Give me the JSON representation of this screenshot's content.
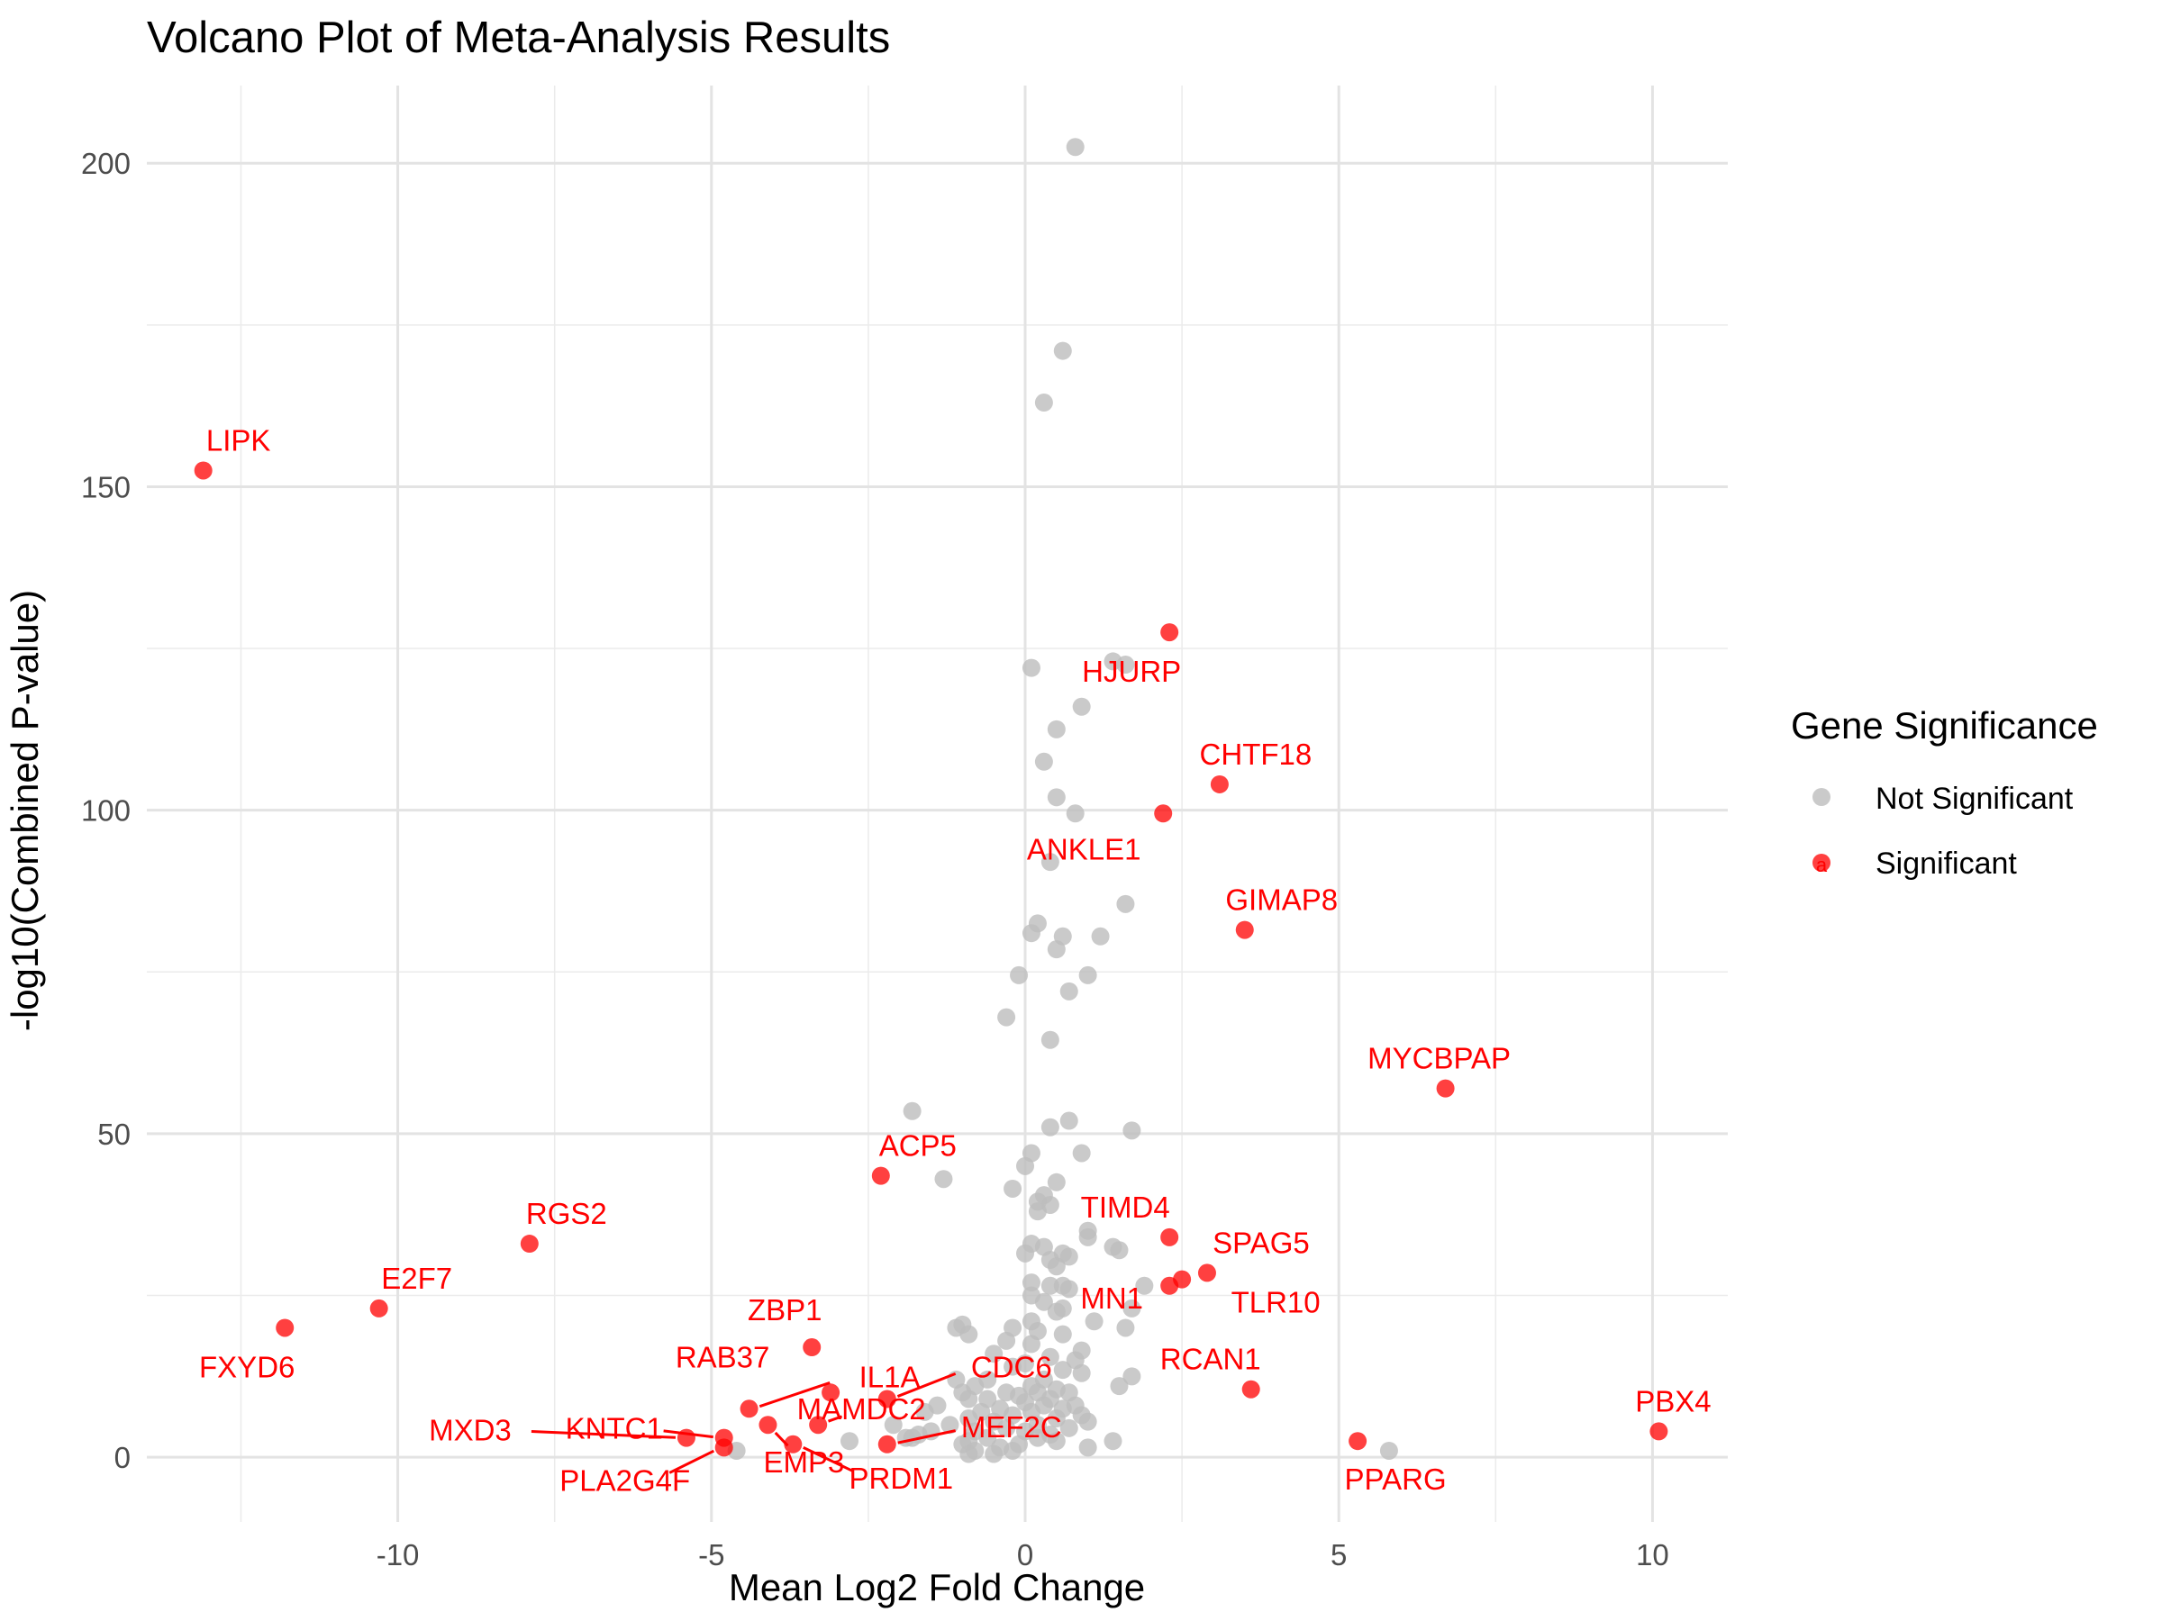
{
  "chart_data": {
    "type": "scatter",
    "title": "Volcano Plot of Meta-Analysis Results",
    "xlabel": "Mean Log2 Fold Change",
    "ylabel": "-log10(Combined P-value)",
    "xlim": [
      -14,
      11.2
    ],
    "ylim": [
      -10,
      212
    ],
    "x_ticks": [
      -10,
      -5,
      0,
      5,
      10
    ],
    "x_tick_labels": [
      "-10",
      "-5",
      "0",
      "5",
      "10"
    ],
    "y_ticks": [
      0,
      50,
      100,
      150,
      200
    ],
    "y_tick_labels": [
      "0",
      "50",
      "100",
      "150",
      "200"
    ],
    "grid": true,
    "legend": {
      "title": "Gene Significance",
      "position": "right",
      "entries": [
        {
          "label": "Not Significant",
          "color": "#bdbdbd"
        },
        {
          "label": "Significant",
          "color": "#ff0000"
        }
      ]
    },
    "colors": {
      "significant": "#ff0000",
      "not_significant": "#bdbdbd"
    },
    "significant": [
      {
        "gene": "LIPK",
        "x": -13.1,
        "y": 152.5
      },
      {
        "gene": "FXYD6",
        "x": -11.8,
        "y": 20
      },
      {
        "gene": "E2F7",
        "x": -10.3,
        "y": 23
      },
      {
        "gene": "RGS2",
        "x": -7.9,
        "y": 33
      },
      {
        "gene": "ACP5",
        "x": -2.3,
        "y": 43.5
      },
      {
        "gene": "ZBP1",
        "x": -3.4,
        "y": 17
      },
      {
        "gene": "RAB37",
        "x": -3.1,
        "y": 10
      },
      {
        "gene": "IL1A",
        "x": -4.4,
        "y": 7.5
      },
      {
        "gene": "CDC6",
        "x": -2.2,
        "y": 9
      },
      {
        "gene": "MXD3",
        "x": -5.4,
        "y": 3
      },
      {
        "gene": "KNTC1",
        "x": -4.8,
        "y": 3
      },
      {
        "gene": "PLA2G4F",
        "x": -4.8,
        "y": 1.5
      },
      {
        "gene": "EMP3",
        "x": -4.1,
        "y": 5
      },
      {
        "gene": "MAMDC2",
        "x": -3.3,
        "y": 5
      },
      {
        "gene": "PRDM1",
        "x": -3.7,
        "y": 2
      },
      {
        "gene": "MEF2C",
        "x": -2.2,
        "y": 2
      },
      {
        "gene": "HJURP",
        "x": 2.3,
        "y": 127.5
      },
      {
        "gene": "ANKLE1",
        "x": 2.2,
        "y": 99.5
      },
      {
        "gene": "CHTF18",
        "x": 3.1,
        "y": 104
      },
      {
        "gene": "GIMAP8",
        "x": 3.5,
        "y": 81.5
      },
      {
        "gene": "MYCBPAP",
        "x": 6.7,
        "y": 57
      },
      {
        "gene": "TIMD4",
        "x": 2.3,
        "y": 34
      },
      {
        "gene": "SPAG5",
        "x": 2.9,
        "y": 28.5
      },
      {
        "gene": "TLR10",
        "x": 2.5,
        "y": 27.5
      },
      {
        "gene": "MN1",
        "x": 2.3,
        "y": 26.5
      },
      {
        "gene": "RCAN1",
        "x": 3.6,
        "y": 10.5
      },
      {
        "gene": "PPARG",
        "x": 5.3,
        "y": 2.5
      },
      {
        "gene": "PBX4",
        "x": 10.1,
        "y": 4
      }
    ],
    "not_significant": [
      {
        "x": 0.8,
        "y": 202.5
      },
      {
        "x": 0.6,
        "y": 171
      },
      {
        "x": 0.3,
        "y": 163
      },
      {
        "x": 0.1,
        "y": 122
      },
      {
        "x": 1.4,
        "y": 123
      },
      {
        "x": 1.6,
        "y": 122.5
      },
      {
        "x": 0.9,
        "y": 116
      },
      {
        "x": 0.5,
        "y": 112.5
      },
      {
        "x": 0.3,
        "y": 107.5
      },
      {
        "x": 0.5,
        "y": 102
      },
      {
        "x": 0.8,
        "y": 99.5
      },
      {
        "x": 0.4,
        "y": 92
      },
      {
        "x": 1.6,
        "y": 85.5
      },
      {
        "x": 0.2,
        "y": 82.5
      },
      {
        "x": 0.1,
        "y": 81
      },
      {
        "x": 1.2,
        "y": 80.5
      },
      {
        "x": 0.6,
        "y": 80.5
      },
      {
        "x": 0.5,
        "y": 78.5
      },
      {
        "x": -0.1,
        "y": 74.5
      },
      {
        "x": 1.0,
        "y": 74.5
      },
      {
        "x": 0.7,
        "y": 72
      },
      {
        "x": -0.3,
        "y": 68
      },
      {
        "x": 0.4,
        "y": 64.5
      },
      {
        "x": -1.8,
        "y": 53.5
      },
      {
        "x": 0.7,
        "y": 52
      },
      {
        "x": 0.4,
        "y": 51
      },
      {
        "x": 1.7,
        "y": 50.5
      },
      {
        "x": 0.9,
        "y": 47
      },
      {
        "x": 0.1,
        "y": 47
      },
      {
        "x": 0.0,
        "y": 45
      },
      {
        "x": -1.3,
        "y": 43
      },
      {
        "x": 0.5,
        "y": 42.5
      },
      {
        "x": -0.2,
        "y": 41.5
      },
      {
        "x": 0.3,
        "y": 40.5
      },
      {
        "x": 0.2,
        "y": 39.5
      },
      {
        "x": 0.4,
        "y": 39
      },
      {
        "x": 0.2,
        "y": 38
      },
      {
        "x": 1.0,
        "y": 35
      },
      {
        "x": 1.0,
        "y": 34
      },
      {
        "x": 0.1,
        "y": 33
      },
      {
        "x": 0.3,
        "y": 32.5
      },
      {
        "x": 1.4,
        "y": 32.5
      },
      {
        "x": 1.5,
        "y": 32
      },
      {
        "x": 0.0,
        "y": 31.5
      },
      {
        "x": 0.6,
        "y": 31.5
      },
      {
        "x": 0.7,
        "y": 31
      },
      {
        "x": 0.4,
        "y": 30.5
      },
      {
        "x": 0.5,
        "y": 29.5
      },
      {
        "x": 0.1,
        "y": 27
      },
      {
        "x": 0.4,
        "y": 26.5
      },
      {
        "x": 0.6,
        "y": 26.5
      },
      {
        "x": 0.7,
        "y": 26
      },
      {
        "x": 1.9,
        "y": 26.5
      },
      {
        "x": 0.1,
        "y": 25
      },
      {
        "x": 0.3,
        "y": 24
      },
      {
        "x": 0.6,
        "y": 23
      },
      {
        "x": 0.5,
        "y": 22.5
      },
      {
        "x": 1.7,
        "y": 23
      },
      {
        "x": 1.1,
        "y": 21
      },
      {
        "x": 0.1,
        "y": 21
      },
      {
        "x": -1.0,
        "y": 20.5
      },
      {
        "x": -0.2,
        "y": 20
      },
      {
        "x": -1.1,
        "y": 20
      },
      {
        "x": 0.2,
        "y": 19.5
      },
      {
        "x": -0.9,
        "y": 19
      },
      {
        "x": 0.6,
        "y": 19
      },
      {
        "x": 1.6,
        "y": 20
      },
      {
        "x": -0.3,
        "y": 18
      },
      {
        "x": 0.1,
        "y": 17.5
      },
      {
        "x": 0.9,
        "y": 16.5
      },
      {
        "x": -0.5,
        "y": 16
      },
      {
        "x": 0.4,
        "y": 15.5
      },
      {
        "x": 0.8,
        "y": 15
      },
      {
        "x": 0.0,
        "y": 14.5
      },
      {
        "x": -0.2,
        "y": 14
      },
      {
        "x": 0.6,
        "y": 13.5
      },
      {
        "x": 0.9,
        "y": 13
      },
      {
        "x": 1.7,
        "y": 12.5
      },
      {
        "x": -1.1,
        "y": 12
      },
      {
        "x": -0.6,
        "y": 12
      },
      {
        "x": 0.3,
        "y": 12
      },
      {
        "x": 1.5,
        "y": 11
      },
      {
        "x": -0.8,
        "y": 11
      },
      {
        "x": 0.1,
        "y": 11
      },
      {
        "x": 0.5,
        "y": 10.5
      },
      {
        "x": -1.0,
        "y": 10
      },
      {
        "x": -0.3,
        "y": 10
      },
      {
        "x": 0.2,
        "y": 10
      },
      {
        "x": 0.7,
        "y": 10
      },
      {
        "x": -0.1,
        "y": 9.5
      },
      {
        "x": 0.4,
        "y": 9
      },
      {
        "x": -0.6,
        "y": 9
      },
      {
        "x": -0.9,
        "y": 9
      },
      {
        "x": 0.0,
        "y": 8.5
      },
      {
        "x": 0.3,
        "y": 8
      },
      {
        "x": -1.4,
        "y": 8
      },
      {
        "x": 0.8,
        "y": 8
      },
      {
        "x": -0.4,
        "y": 7.5
      },
      {
        "x": 0.6,
        "y": 7.5
      },
      {
        "x": -0.7,
        "y": 7
      },
      {
        "x": 0.1,
        "y": 7
      },
      {
        "x": -1.6,
        "y": 7
      },
      {
        "x": 0.9,
        "y": 6.5
      },
      {
        "x": -0.2,
        "y": 6.5
      },
      {
        "x": 0.5,
        "y": 6
      },
      {
        "x": -0.9,
        "y": 6
      },
      {
        "x": 1.0,
        "y": 5.5
      },
      {
        "x": -0.5,
        "y": 5.5
      },
      {
        "x": 0.2,
        "y": 5
      },
      {
        "x": -1.2,
        "y": 5
      },
      {
        "x": -0.3,
        "y": 4.5
      },
      {
        "x": 0.7,
        "y": 4.5
      },
      {
        "x": -1.5,
        "y": 4
      },
      {
        "x": -0.8,
        "y": 4
      },
      {
        "x": 0.0,
        "y": 4
      },
      {
        "x": 0.4,
        "y": 3.5
      },
      {
        "x": -1.7,
        "y": 3.5
      },
      {
        "x": -0.6,
        "y": 3
      },
      {
        "x": 0.2,
        "y": 3
      },
      {
        "x": -1.9,
        "y": 3
      },
      {
        "x": 1.4,
        "y": 2.5
      },
      {
        "x": -0.9,
        "y": 2.5
      },
      {
        "x": 0.5,
        "y": 2.5
      },
      {
        "x": -0.1,
        "y": 2
      },
      {
        "x": -1.0,
        "y": 2
      },
      {
        "x": 1.0,
        "y": 1.5
      },
      {
        "x": -0.4,
        "y": 1.5
      },
      {
        "x": -0.8,
        "y": 1
      },
      {
        "x": -0.2,
        "y": 1
      },
      {
        "x": -0.9,
        "y": 0.5
      },
      {
        "x": -0.5,
        "y": 0.5
      },
      {
        "x": -4.6,
        "y": 1
      },
      {
        "x": 5.8,
        "y": 1
      },
      {
        "x": -2.8,
        "y": 2.5
      },
      {
        "x": -1.8,
        "y": 3
      },
      {
        "x": -2.1,
        "y": 5
      }
    ]
  }
}
